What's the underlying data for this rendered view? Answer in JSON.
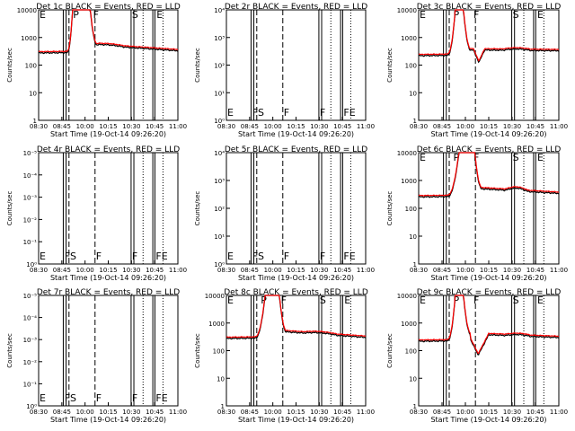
{
  "x_ticks": [
    "08:30",
    "08:45",
    "10:00",
    "10:15",
    "10:30",
    "10:45",
    "11:00"
  ],
  "xlabel": "Start Time (19-Oct-14 09:26:20)",
  "ylabel": "Counts/sec",
  "flag_labels": {
    "E": "E",
    "F": "F",
    "S": "S",
    "P": "P",
    "FS": "FS",
    "FE": "FE"
  },
  "line_colors": {
    "events": "#000000",
    "lld": "#ff0000"
  },
  "chart_data": [
    {
      "type": "line",
      "title": "Det 1c BLACK = Events, RED = LLD",
      "yscale": "log",
      "yticks": [
        "1",
        "10",
        "100",
        "1000",
        "10000"
      ],
      "kind": "flare1",
      "flags": [
        "E",
        "P",
        "F",
        "S",
        "E"
      ]
    },
    {
      "type": "line",
      "title": "Det 2r BLACK = Events, RED = LLD",
      "yscale": "log",
      "yticks": [
        "10⁰",
        "10¹",
        "10²",
        "10³",
        "10⁴"
      ],
      "kind": "empty",
      "flags": [
        "E",
        "FS",
        "F",
        "F",
        "FE"
      ]
    },
    {
      "type": "line",
      "title": "Det 3c BLACK = Events, RED = LLD",
      "yscale": "log",
      "yticks": [
        "1",
        "10",
        "100",
        "1000",
        "10000"
      ],
      "kind": "flare3",
      "flags": [
        "E",
        "P",
        "F",
        "S",
        "E"
      ]
    },
    {
      "type": "line",
      "title": "Det 4r BLACK = Events, RED = LLD",
      "yscale": "log",
      "yticks": [
        "10⁰",
        "10⁻¹",
        "10⁻²",
        "10⁻³",
        "10⁻⁴",
        "10⁻⁵"
      ],
      "kind": "empty",
      "flags": [
        "E",
        "FS",
        "F",
        "F",
        "FE"
      ]
    },
    {
      "type": "line",
      "title": "Det 5r BLACK = Events, RED = LLD",
      "yscale": "log",
      "yticks": [
        "10⁰",
        "10¹",
        "10²",
        "10³",
        "10⁴"
      ],
      "kind": "empty",
      "flags": [
        "E",
        "FS",
        "F",
        "F",
        "FE"
      ]
    },
    {
      "type": "line",
      "title": "Det 6c BLACK = Events, RED = LLD",
      "yscale": "log",
      "yticks": [
        "1",
        "10",
        "100",
        "1000",
        "10000"
      ],
      "kind": "flare6",
      "flags": [
        "E",
        "P",
        "F",
        "S",
        "E"
      ]
    },
    {
      "type": "line",
      "title": "Det 7r BLACK = Events, RED = LLD",
      "yscale": "log",
      "yticks": [
        "10⁰",
        "10⁻¹",
        "10⁻²",
        "10⁻³",
        "10⁻⁴",
        "10⁻⁵"
      ],
      "kind": "empty",
      "flags": [
        "E",
        "FS",
        "F",
        "F",
        "FE"
      ]
    },
    {
      "type": "line",
      "title": "Det 8c BLACK = Events, RED = LLD",
      "yscale": "log",
      "yticks": [
        "1",
        "10",
        "100",
        "1000",
        "10000"
      ],
      "kind": "flare8",
      "flags": [
        "E",
        "P",
        "F",
        "S",
        "E"
      ]
    },
    {
      "type": "line",
      "title": "Det 9c BLACK = Events, RED = LLD",
      "yscale": "log",
      "yticks": [
        "1",
        "10",
        "100",
        "1000",
        "10000"
      ],
      "kind": "flare9",
      "flags": [
        "E",
        "P",
        "F",
        "S",
        "E"
      ]
    }
  ]
}
